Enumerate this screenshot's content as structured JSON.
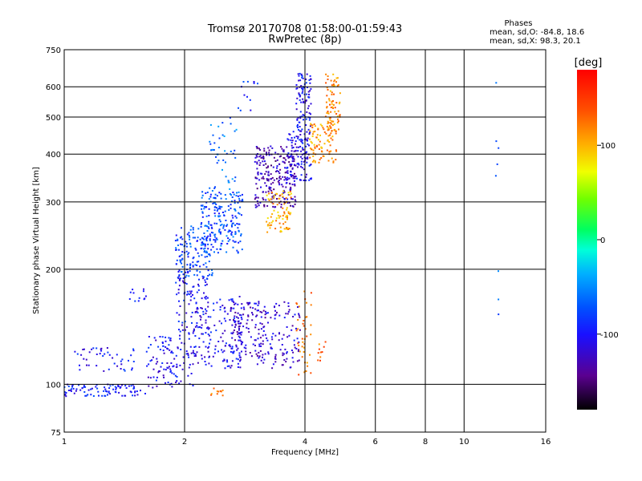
{
  "chart_data": {
    "type": "scatter",
    "title": "Tromsø 20170708 01:58:00-01:59:43",
    "subtitle": "RwPretec (8p)",
    "xlabel": "Frequency [MHz]",
    "ylabel": "Stationary phase Virtual Height [km]",
    "xscale": "log",
    "yscale": "log",
    "xlim": [
      1,
      16
    ],
    "ylim": [
      75,
      750
    ],
    "xticks": [
      1,
      2,
      4,
      6,
      8,
      10,
      16
    ],
    "xtick_labels": [
      "1",
      "2",
      "4",
      "6",
      "8",
      "10",
      "16"
    ],
    "yticks": [
      75,
      100,
      200,
      300,
      400,
      500,
      600,
      750
    ],
    "ytick_labels": [
      "75",
      "100",
      "200",
      "300",
      "400",
      "500",
      "600",
      "750"
    ],
    "grid": true,
    "stats": {
      "heading": "Phases",
      "line_o": "mean, sd,O: -84.8, 18.6",
      "line_x": "mean, sd,X:  98.3, 20.1"
    },
    "colorbar": {
      "label": "[deg]",
      "range": [
        -180,
        180
      ],
      "ticks": [
        100,
        0,
        -100
      ],
      "tick_labels": [
        "100",
        "0",
        "-100"
      ]
    },
    "clusters": [
      {
        "fmin": 1.0,
        "fmax": 1.6,
        "hmin": 93,
        "hmax": 100,
        "n": 90,
        "phase": -95
      },
      {
        "fmin": 1.05,
        "fmax": 1.5,
        "hmin": 108,
        "hmax": 125,
        "n": 45,
        "phase": -100
      },
      {
        "fmin": 1.45,
        "fmax": 1.65,
        "hmin": 165,
        "hmax": 178,
        "n": 12,
        "phase": -105
      },
      {
        "fmin": 1.6,
        "fmax": 2.1,
        "hmin": 98,
        "hmax": 135,
        "n": 110,
        "phase": -105
      },
      {
        "fmin": 1.9,
        "fmax": 2.3,
        "hmin": 135,
        "hmax": 200,
        "n": 90,
        "phase": -100
      },
      {
        "fmin": 1.9,
        "fmax": 2.35,
        "hmin": 190,
        "hmax": 260,
        "n": 140,
        "phase": -80
      },
      {
        "fmin": 2.2,
        "fmax": 2.8,
        "hmin": 220,
        "hmax": 320,
        "n": 200,
        "phase": -75
      },
      {
        "fmin": 2.1,
        "fmax": 2.8,
        "hmin": 110,
        "hmax": 170,
        "n": 150,
        "phase": -105
      },
      {
        "fmin": 2.6,
        "fmax": 3.2,
        "hmin": 115,
        "hmax": 165,
        "n": 120,
        "phase": -120
      },
      {
        "fmin": 2.3,
        "fmax": 2.7,
        "hmin": 320,
        "hmax": 500,
        "n": 45,
        "phase": -60
      },
      {
        "fmin": 2.7,
        "fmax": 3.1,
        "hmin": 520,
        "hmax": 620,
        "n": 12,
        "phase": -85
      },
      {
        "fmin": 3.0,
        "fmax": 3.8,
        "hmin": 290,
        "hmax": 420,
        "n": 240,
        "phase": -130
      },
      {
        "fmin": 3.2,
        "fmax": 3.7,
        "hmin": 250,
        "hmax": 320,
        "n": 80,
        "phase": 105
      },
      {
        "fmin": 3.6,
        "fmax": 4.15,
        "hmin": 340,
        "hmax": 460,
        "n": 120,
        "phase": -105
      },
      {
        "fmin": 3.8,
        "fmax": 4.15,
        "hmin": 460,
        "hmax": 650,
        "n": 90,
        "phase": -100
      },
      {
        "fmin": 4.1,
        "fmax": 4.8,
        "hmin": 380,
        "hmax": 480,
        "n": 90,
        "phase": 110
      },
      {
        "fmin": 4.5,
        "fmax": 4.9,
        "hmin": 460,
        "hmax": 650,
        "n": 80,
        "phase": 115
      },
      {
        "fmin": 3.0,
        "fmax": 3.9,
        "hmin": 110,
        "hmax": 165,
        "n": 110,
        "phase": -115
      },
      {
        "fmin": 3.8,
        "fmax": 4.15,
        "hmin": 105,
        "hmax": 180,
        "n": 40,
        "phase": 125
      },
      {
        "fmin": 4.3,
        "fmax": 4.55,
        "hmin": 115,
        "hmax": 130,
        "n": 10,
        "phase": 130
      },
      {
        "fmin": 2.3,
        "fmax": 2.5,
        "hmin": 92,
        "hmax": 98,
        "n": 10,
        "phase": 120
      },
      {
        "fmin": 12.0,
        "fmax": 12.2,
        "hmin": 150,
        "hmax": 650,
        "n": 8,
        "phase": -70
      }
    ]
  }
}
